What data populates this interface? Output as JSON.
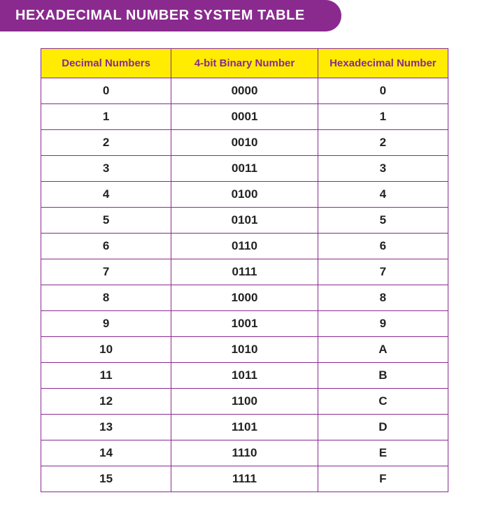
{
  "title": "HEXADECIMAL NUMBER SYSTEM TABLE",
  "table": {
    "columns": [
      "Decimal Numbers",
      "4-bit Binary Number",
      "Hexadecimal Number"
    ],
    "rows": [
      [
        "0",
        "0000",
        "0"
      ],
      [
        "1",
        "0001",
        "1"
      ],
      [
        "2",
        "0010",
        "2"
      ],
      [
        "3",
        "0011",
        "3"
      ],
      [
        "4",
        "0100",
        "4"
      ],
      [
        "5",
        "0101",
        "5"
      ],
      [
        "6",
        "0110",
        "6"
      ],
      [
        "7",
        "0111",
        "7"
      ],
      [
        "8",
        "1000",
        "8"
      ],
      [
        "9",
        "1001",
        "9"
      ],
      [
        "10",
        "1010",
        "A"
      ],
      [
        "11",
        "1011",
        "B"
      ],
      [
        "12",
        "1100",
        "C"
      ],
      [
        "13",
        "1101",
        "D"
      ],
      [
        "14",
        "1110",
        "E"
      ],
      [
        "15",
        "1111",
        "F"
      ]
    ],
    "header_bg": "#ffec00",
    "header_text_color": "#8a2a8f",
    "border_color": "#8a2a8f",
    "cell_text_color": "#222222",
    "title_bg": "#8a2a8f",
    "title_text_color": "#ffffff",
    "header_fontsize": 15,
    "cell_fontsize": 17,
    "title_fontsize": 20,
    "column_widths_pct": [
      32,
      36,
      32
    ]
  }
}
